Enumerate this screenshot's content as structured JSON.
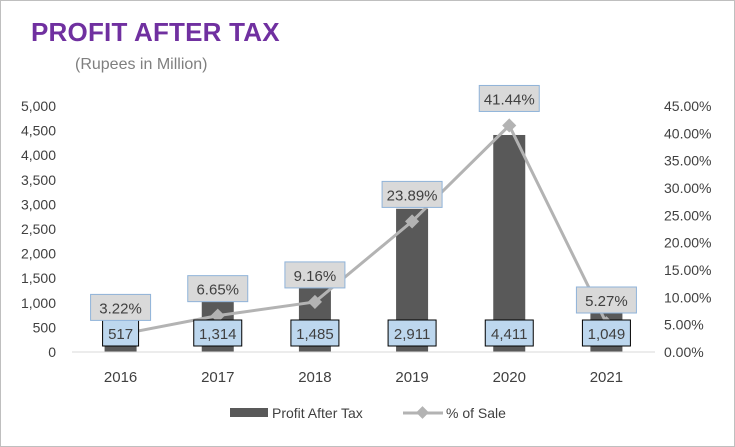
{
  "chart_data": {
    "type": "bar",
    "title": "PROFIT AFTER TAX",
    "subtitle": "(Rupees in Million)",
    "categories": [
      "2016",
      "2017",
      "2018",
      "2019",
      "2020",
      "2021"
    ],
    "series": [
      {
        "name": "Profit After Tax",
        "type": "bar",
        "axis": "left",
        "values": [
          517,
          1314,
          1485,
          2911,
          4411,
          1049
        ],
        "labels": [
          "517",
          "1,314",
          "1,485",
          "2,911",
          "4,411",
          "1,049"
        ],
        "color": "#595959"
      },
      {
        "name": "% of Sale",
        "type": "line",
        "axis": "right",
        "values": [
          3.22,
          6.65,
          9.16,
          23.89,
          41.44,
          5.27
        ],
        "labels": [
          "3.22%",
          "6.65%",
          "9.16%",
          "23.89%",
          "41.44%",
          "5.27%"
        ],
        "color": "#b3b3b3"
      }
    ],
    "y_left": {
      "ylim": [
        0,
        5000
      ],
      "ticks": [
        "0",
        "500",
        "1,000",
        "1,500",
        "2,000",
        "2,500",
        "3,000",
        "3,500",
        "4,000",
        "4,500",
        "5,000"
      ]
    },
    "y_right": {
      "ylim": [
        0,
        45
      ],
      "ticks": [
        "0.00%",
        "5.00%",
        "10.00%",
        "15.00%",
        "20.00%",
        "25.00%",
        "30.00%",
        "35.00%",
        "40.00%",
        "45.00%"
      ]
    },
    "grid": false,
    "legend": "bottom"
  }
}
